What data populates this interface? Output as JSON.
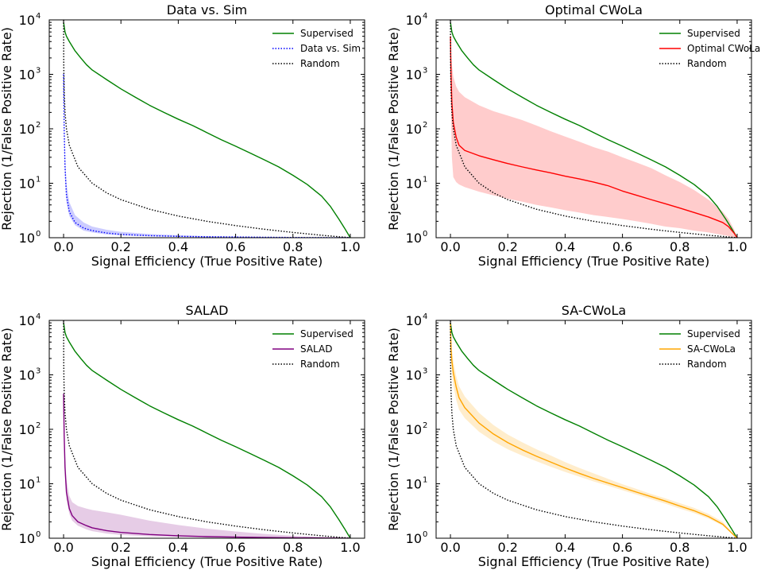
{
  "chart_data": [
    {
      "type": "line",
      "title": "Data vs. Sim",
      "xlabel": "Signal Efficiency (True Positive Rate)",
      "ylabel": "Rejection (1/False Positive Rate)",
      "xlim": [
        -0.05,
        1.05
      ],
      "ylim": [
        1,
        10000
      ],
      "yscale": "log",
      "xticks": [
        "0.0",
        "0.2",
        "0.4",
        "0.6",
        "0.8",
        "1.0"
      ],
      "yticks": [
        {
          "base": "10",
          "exp": "0"
        },
        {
          "base": "10",
          "exp": "1"
        },
        {
          "base": "10",
          "exp": "2"
        },
        {
          "base": "10",
          "exp": "3"
        },
        {
          "base": "10",
          "exp": "4"
        }
      ],
      "legend_position": "top-right",
      "series": [
        {
          "name": "Supervised",
          "color": "#008000",
          "style": "solid",
          "x": [
            0.0,
            0.005,
            0.01,
            0.02,
            0.04,
            0.06,
            0.08,
            0.1,
            0.15,
            0.2,
            0.25,
            0.3,
            0.35,
            0.4,
            0.45,
            0.5,
            0.55,
            0.6,
            0.65,
            0.7,
            0.75,
            0.8,
            0.85,
            0.9,
            0.93,
            0.96,
            0.98,
            1.0
          ],
          "y": [
            9000,
            6000,
            5000,
            4000,
            2700,
            2000,
            1500,
            1200,
            800,
            540,
            380,
            270,
            200,
            150,
            115,
            85,
            63,
            48,
            36,
            27,
            20,
            14,
            9.5,
            5.8,
            3.8,
            2.2,
            1.5,
            1.0
          ]
        },
        {
          "name": "Data vs. Sim",
          "color": "#0000ff",
          "style": "dotted",
          "x": [
            0.0,
            0.002,
            0.005,
            0.01,
            0.02,
            0.04,
            0.07,
            0.1,
            0.15,
            0.2,
            0.3,
            0.4,
            0.5,
            0.6,
            0.7,
            0.8,
            0.9,
            1.0
          ],
          "y": [
            1000,
            100,
            20,
            6,
            3.0,
            1.9,
            1.5,
            1.35,
            1.22,
            1.15,
            1.09,
            1.06,
            1.04,
            1.03,
            1.02,
            1.01,
            1.005,
            1.0
          ],
          "band": {
            "color": "#0000ff",
            "lower": [
              700,
              60,
              12,
              4.5,
              2.5,
              1.7,
              1.35,
              1.25,
              1.15,
              1.1,
              1.06,
              1.04,
              1.03,
              1.02,
              1.01,
              1.005,
              1.0,
              1.0
            ],
            "upper": [
              1500,
              150,
              35,
              10,
              4.5,
              2.6,
              1.9,
              1.6,
              1.4,
              1.28,
              1.17,
              1.11,
              1.07,
              1.05,
              1.03,
              1.02,
              1.01,
              1.0
            ]
          }
        },
        {
          "name": "Random",
          "color": "#000000",
          "style": "dotted",
          "x": [
            0.0001,
            0.0005,
            0.001,
            0.002,
            0.005,
            0.01,
            0.02,
            0.05,
            0.1,
            0.15,
            0.2,
            0.3,
            0.4,
            0.5,
            0.6,
            0.7,
            0.8,
            0.9,
            1.0
          ],
          "y": [
            10000,
            2000,
            1000,
            500,
            200,
            100,
            50,
            20,
            10,
            6.67,
            5,
            3.33,
            2.5,
            2,
            1.67,
            1.43,
            1.25,
            1.11,
            1.0
          ]
        }
      ]
    },
    {
      "type": "line",
      "title": "Optimal CWoLa",
      "xlabel": "Signal Efficiency (True Positive Rate)",
      "ylabel": "Rejection (1/False Positive Rate)",
      "xlim": [
        -0.05,
        1.05
      ],
      "ylim": [
        1,
        10000
      ],
      "yscale": "log",
      "xticks": [
        "0.0",
        "0.2",
        "0.4",
        "0.6",
        "0.8",
        "1.0"
      ],
      "yticks": [
        {
          "base": "10",
          "exp": "0"
        },
        {
          "base": "10",
          "exp": "1"
        },
        {
          "base": "10",
          "exp": "2"
        },
        {
          "base": "10",
          "exp": "3"
        },
        {
          "base": "10",
          "exp": "4"
        }
      ],
      "legend_position": "top-right",
      "series": [
        {
          "name": "Supervised",
          "color": "#008000",
          "style": "solid",
          "x": [
            0.0,
            0.005,
            0.01,
            0.02,
            0.04,
            0.06,
            0.08,
            0.1,
            0.15,
            0.2,
            0.25,
            0.3,
            0.35,
            0.4,
            0.45,
            0.5,
            0.55,
            0.6,
            0.65,
            0.7,
            0.75,
            0.8,
            0.85,
            0.9,
            0.93,
            0.96,
            0.98,
            1.0
          ],
          "y": [
            9000,
            6000,
            5000,
            4000,
            2700,
            2000,
            1500,
            1200,
            800,
            540,
            380,
            270,
            200,
            150,
            115,
            85,
            63,
            48,
            36,
            27,
            20,
            14,
            9.5,
            5.8,
            3.8,
            2.2,
            1.5,
            1.0
          ]
        },
        {
          "name": "Optimal CWoLa",
          "color": "#ff0000",
          "style": "solid",
          "x": [
            0.0,
            0.002,
            0.005,
            0.01,
            0.02,
            0.03,
            0.05,
            0.1,
            0.15,
            0.2,
            0.25,
            0.3,
            0.35,
            0.4,
            0.45,
            0.5,
            0.55,
            0.6,
            0.65,
            0.7,
            0.75,
            0.8,
            0.85,
            0.9,
            0.95,
            0.97,
            0.99,
            1.0
          ],
          "y": [
            5000,
            1000,
            300,
            130,
            70,
            50,
            40,
            32,
            27,
            23,
            20,
            17.5,
            15.5,
            13.5,
            12,
            10.5,
            9.0,
            7.2,
            6.0,
            5.0,
            4.2,
            3.5,
            2.9,
            2.4,
            1.9,
            1.6,
            1.2,
            1.0
          ],
          "band": {
            "color": "#ff0000",
            "lower": [
              3000,
              200,
              30,
              13,
              10.5,
              9.5,
              8.5,
              7.0,
              6.0,
              5.2,
              4.6,
              4.0,
              3.6,
              3.2,
              2.9,
              2.6,
              2.4,
              2.2,
              2.0,
              1.8,
              1.6,
              1.5,
              1.35,
              1.25,
              1.12,
              1.07,
              1.02,
              1.0
            ],
            "upper": [
              8000,
              2500,
              1500,
              900,
              600,
              480,
              380,
              270,
              210,
              175,
              145,
              115,
              90,
              72,
              58,
              46,
              38,
              30,
              24,
              19,
              14,
              10.5,
              7.5,
              5.0,
              3.0,
              2.2,
              1.4,
              1.0
            ]
          }
        },
        {
          "name": "Random",
          "color": "#000000",
          "style": "dotted",
          "x": [
            0.0001,
            0.0005,
            0.001,
            0.002,
            0.005,
            0.01,
            0.02,
            0.05,
            0.1,
            0.15,
            0.2,
            0.3,
            0.4,
            0.5,
            0.6,
            0.7,
            0.8,
            0.9,
            1.0
          ],
          "y": [
            10000,
            2000,
            1000,
            500,
            200,
            100,
            50,
            20,
            10,
            6.67,
            5,
            3.33,
            2.5,
            2,
            1.67,
            1.43,
            1.25,
            1.11,
            1.0
          ]
        }
      ]
    },
    {
      "type": "line",
      "title": "SALAD",
      "xlabel": "Signal Efficiency (True Positive Rate)",
      "ylabel": "Rejection (1/False Positive Rate)",
      "xlim": [
        -0.05,
        1.05
      ],
      "ylim": [
        1,
        10000
      ],
      "yscale": "log",
      "xticks": [
        "0.0",
        "0.2",
        "0.4",
        "0.6",
        "0.8",
        "1.0"
      ],
      "yticks": [
        {
          "base": "10",
          "exp": "0"
        },
        {
          "base": "10",
          "exp": "1"
        },
        {
          "base": "10",
          "exp": "2"
        },
        {
          "base": "10",
          "exp": "3"
        },
        {
          "base": "10",
          "exp": "4"
        }
      ],
      "legend_position": "top-right",
      "series": [
        {
          "name": "Supervised",
          "color": "#008000",
          "style": "solid",
          "x": [
            0.0,
            0.005,
            0.01,
            0.02,
            0.04,
            0.06,
            0.08,
            0.1,
            0.15,
            0.2,
            0.25,
            0.3,
            0.35,
            0.4,
            0.45,
            0.5,
            0.55,
            0.6,
            0.65,
            0.7,
            0.75,
            0.8,
            0.85,
            0.9,
            0.93,
            0.96,
            0.98,
            1.0
          ],
          "y": [
            9000,
            6000,
            5000,
            4000,
            2700,
            2000,
            1500,
            1200,
            800,
            540,
            380,
            270,
            200,
            150,
            115,
            85,
            63,
            48,
            36,
            27,
            20,
            14,
            9.5,
            5.8,
            3.8,
            2.2,
            1.5,
            1.0
          ]
        },
        {
          "name": "SALAD",
          "color": "#800080",
          "style": "solid",
          "x": [
            0.0,
            0.002,
            0.005,
            0.01,
            0.02,
            0.03,
            0.05,
            0.08,
            0.1,
            0.15,
            0.2,
            0.3,
            0.4,
            0.5,
            0.6,
            0.7,
            0.8,
            0.9,
            1.0
          ],
          "y": [
            450,
            80,
            20,
            7,
            3.5,
            2.6,
            2.0,
            1.7,
            1.55,
            1.38,
            1.28,
            1.17,
            1.11,
            1.07,
            1.05,
            1.03,
            1.02,
            1.01,
            1.0
          ],
          "band": {
            "color": "#800080",
            "lower": [
              300,
              50,
              12,
              5,
              2.8,
              2.1,
              1.7,
              1.45,
              1.35,
              1.22,
              1.15,
              1.08,
              1.05,
              1.03,
              1.02,
              1.01,
              1.005,
              1.0,
              1.0
            ],
            "upper": [
              700,
              130,
              35,
              12,
              6.0,
              4.6,
              3.9,
              3.5,
              3.3,
              3.0,
              2.7,
              2.1,
              1.75,
              1.5,
              1.33,
              1.2,
              1.11,
              1.05,
              1.0
            ]
          }
        },
        {
          "name": "Random",
          "color": "#000000",
          "style": "dotted",
          "x": [
            0.0001,
            0.0005,
            0.001,
            0.002,
            0.005,
            0.01,
            0.02,
            0.05,
            0.1,
            0.15,
            0.2,
            0.3,
            0.4,
            0.5,
            0.6,
            0.7,
            0.8,
            0.9,
            1.0
          ],
          "y": [
            10000,
            2000,
            1000,
            500,
            200,
            100,
            50,
            20,
            10,
            6.67,
            5,
            3.33,
            2.5,
            2,
            1.67,
            1.43,
            1.25,
            1.11,
            1.0
          ]
        }
      ]
    },
    {
      "type": "line",
      "title": "SA-CWoLa",
      "xlabel": "Signal Efficiency (True Positive Rate)",
      "ylabel": "Rejection (1/False Positive Rate)",
      "xlim": [
        -0.05,
        1.05
      ],
      "ylim": [
        1,
        10000
      ],
      "yscale": "log",
      "xticks": [
        "0.0",
        "0.2",
        "0.4",
        "0.6",
        "0.8",
        "1.0"
      ],
      "yticks": [
        {
          "base": "10",
          "exp": "0"
        },
        {
          "base": "10",
          "exp": "1"
        },
        {
          "base": "10",
          "exp": "2"
        },
        {
          "base": "10",
          "exp": "3"
        },
        {
          "base": "10",
          "exp": "4"
        }
      ],
      "legend_position": "top-right",
      "series": [
        {
          "name": "Supervised",
          "color": "#008000",
          "style": "solid",
          "x": [
            0.0,
            0.005,
            0.01,
            0.02,
            0.04,
            0.06,
            0.08,
            0.1,
            0.15,
            0.2,
            0.25,
            0.3,
            0.35,
            0.4,
            0.45,
            0.5,
            0.55,
            0.6,
            0.65,
            0.7,
            0.75,
            0.8,
            0.85,
            0.9,
            0.93,
            0.96,
            0.98,
            1.0
          ],
          "y": [
            9000,
            6000,
            5000,
            4000,
            2700,
            2000,
            1500,
            1200,
            800,
            540,
            380,
            270,
            200,
            150,
            115,
            85,
            63,
            48,
            36,
            27,
            20,
            14,
            9.5,
            5.8,
            3.8,
            2.2,
            1.5,
            1.0
          ]
        },
        {
          "name": "SA-CWoLa",
          "color": "#ffa500",
          "style": "solid",
          "x": [
            0.0,
            0.002,
            0.005,
            0.01,
            0.02,
            0.03,
            0.05,
            0.1,
            0.15,
            0.2,
            0.25,
            0.3,
            0.35,
            0.4,
            0.45,
            0.5,
            0.55,
            0.6,
            0.65,
            0.7,
            0.75,
            0.8,
            0.85,
            0.9,
            0.95,
            1.0
          ],
          "y": [
            9000,
            3000,
            1800,
            1100,
            600,
            380,
            250,
            130,
            82,
            57,
            42,
            32,
            25,
            19.5,
            15.5,
            12.5,
            10.3,
            8.5,
            7.0,
            5.8,
            4.8,
            3.9,
            3.2,
            2.5,
            1.8,
            1.0
          ],
          "band": {
            "color": "#ffa500",
            "lower": [
              6000,
              2000,
              1100,
              650,
              350,
              230,
              160,
              90,
              60,
              43,
              33,
              26,
              20.5,
              16.5,
              13.5,
              11.0,
              9.2,
              7.6,
              6.3,
              5.2,
              4.3,
              3.5,
              2.9,
              2.3,
              1.7,
              1.0
            ],
            "upper": [
              10000,
              5000,
              3000,
              1800,
              950,
              620,
              400,
              200,
              120,
              80,
              58,
              43,
              33,
              25,
              19.5,
              15.5,
              12.3,
              9.8,
              8.0,
              6.5,
              5.4,
              4.4,
              3.6,
              2.8,
              2.0,
              1.0
            ]
          }
        },
        {
          "name": "Random",
          "color": "#000000",
          "style": "dotted",
          "x": [
            0.0001,
            0.0005,
            0.001,
            0.002,
            0.005,
            0.01,
            0.02,
            0.05,
            0.1,
            0.15,
            0.2,
            0.3,
            0.4,
            0.5,
            0.6,
            0.7,
            0.8,
            0.9,
            1.0
          ],
          "y": [
            10000,
            2000,
            1000,
            500,
            200,
            100,
            50,
            20,
            10,
            6.67,
            5,
            3.33,
            2.5,
            2,
            1.67,
            1.43,
            1.25,
            1.11,
            1.0
          ]
        }
      ]
    }
  ]
}
